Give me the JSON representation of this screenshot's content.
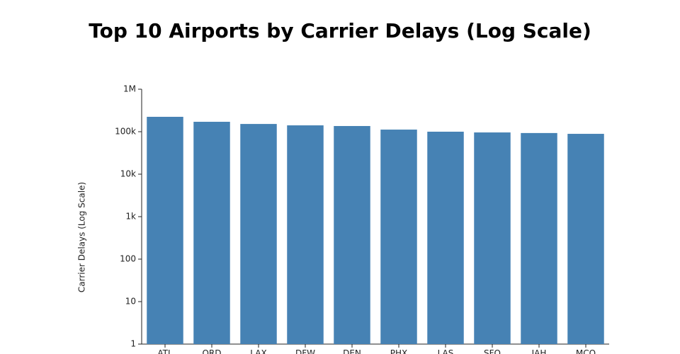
{
  "chart_data": {
    "type": "bar",
    "title": "Top 10 Airports by Carrier Delays (Log Scale)",
    "y_label": "Carrier Delays (Log Scale)",
    "categories": [
      "ATL",
      "ORD",
      "LAX",
      "DFW",
      "DEN",
      "PHX",
      "LAS",
      "SFO",
      "IAH",
      "MCO"
    ],
    "values": [
      224000,
      171000,
      152000,
      141000,
      136000,
      112000,
      100000,
      96000,
      93000,
      89000
    ],
    "color": "#4682b4",
    "log_scale": true,
    "ylim": [
      1,
      1000000
    ],
    "yticks": [
      1,
      10,
      100,
      {
        "value": 1000,
        "label": "1k"
      },
      {
        "value": 10000,
        "label": "10k"
      },
      {
        "value": 100000,
        "label": "100k"
      },
      {
        "value": 1000000,
        "label": "1M"
      }
    ]
  }
}
